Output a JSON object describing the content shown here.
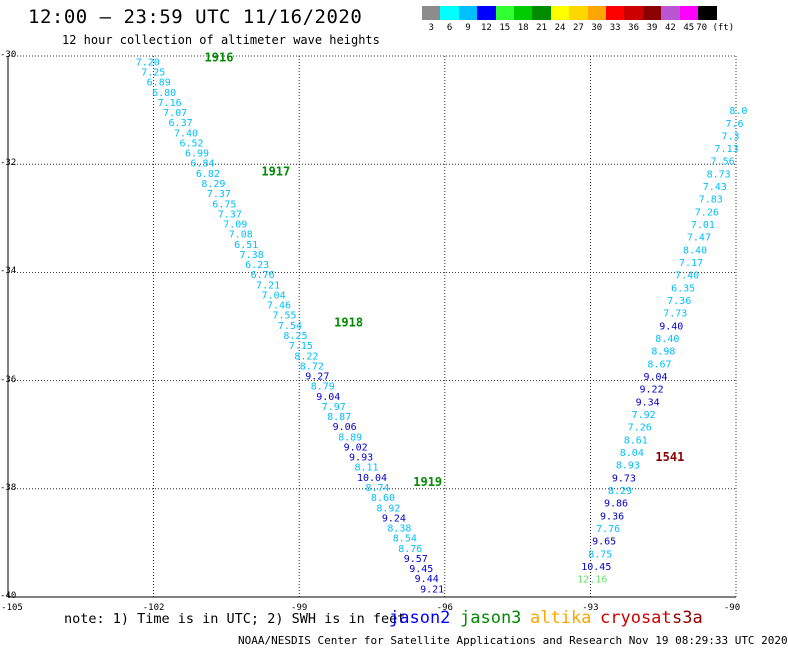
{
  "header": {
    "title": "12:00 – 23:59 UTC 11/16/2020",
    "subtitle": "12 hour collection of altimeter wave heights"
  },
  "colorbar": {
    "ticks": [
      "3",
      "6",
      "9",
      "12",
      "15",
      "18",
      "21",
      "24",
      "27",
      "30",
      "33",
      "36",
      "39",
      "42",
      "45",
      "70 (ft)"
    ],
    "colors": [
      "#8c8c8c",
      "#00ffff",
      "#00bfff",
      "#0000ff",
      "#32ff32",
      "#00cd00",
      "#008b00",
      "#ffff00",
      "#ffd700",
      "#ffa500",
      "#ff0000",
      "#cd0000",
      "#8b0000",
      "#ba55d3",
      "#ff00ff",
      "#000000"
    ]
  },
  "axes": {
    "lat_labels": [
      "-30",
      "-32",
      "-34",
      "-36",
      "-38",
      "-40"
    ],
    "lat_values": [
      -30,
      -32,
      -34,
      -36,
      -38,
      -40
    ],
    "lon_labels": [
      "-105",
      "-102",
      "-99",
      "-96",
      "-93",
      "-90"
    ],
    "lon_values": [
      -105,
      -102,
      -99,
      -96,
      -93,
      -90
    ],
    "lon_range": [
      -105,
      -90
    ],
    "lat_range": [
      -40,
      -30
    ]
  },
  "footer": {
    "note": "note: 1) Time is in UTC; 2) SWH is in feet",
    "credit": "NOAA/NESDIS Center for Satellite Applications and Research   Nov 19 08:29:33 UTC 2020"
  },
  "legend": [
    {
      "name": "jason2",
      "color": "#0000ff"
    },
    {
      "name": "jason3",
      "color": "#008b00"
    },
    {
      "name": "altika",
      "color": "#ffa500"
    },
    {
      "name": "cryosat",
      "color": "#cd0000"
    },
    {
      "name": "s3a",
      "color": "#8b0000"
    }
  ],
  "tracks": [
    {
      "satellite": "jason3",
      "color_scale": "swh_ft",
      "time_labels": [
        {
          "text": "1916",
          "lon": -100.95,
          "lat": -30.01,
          "color": "#008b00"
        },
        {
          "text": "1917",
          "lon": -99.78,
          "lat": -32.12,
          "color": "#008b00"
        },
        {
          "text": "1918",
          "lon": -98.28,
          "lat": -34.91,
          "color": "#008b00"
        },
        {
          "text": "1919",
          "lon": -96.65,
          "lat": -37.86,
          "color": "#008b00"
        }
      ],
      "lon_start": -102.12,
      "lat_start": -30.1,
      "lon_end": -96.26,
      "lat_end": -39.84,
      "values": [
        "7.20",
        "7.25",
        "6.89",
        "6.80",
        "7.16",
        "7.07",
        "6.37",
        "7.40",
        "6.52",
        "6.99",
        "6.84",
        "6.82",
        "8.29",
        "7.37",
        "6.75",
        "7.37",
        "7.09",
        "7.08",
        "6.51",
        "7.38",
        "6.23",
        "6.76",
        "7.21",
        "7.04",
        "7.46",
        "7.55",
        "7.54",
        "8.25",
        "7.15",
        "8.22",
        "8.72",
        "9.27",
        "8.79",
        "9.04",
        "7.97",
        "8.87",
        "9.06",
        "8.89",
        "9.02",
        "9.93",
        "8.11",
        "10.04",
        "8.74",
        "8.60",
        "8.92",
        "9.24",
        "8.38",
        "8.54",
        "8.76",
        "9.57",
        "9.45",
        "9.44",
        "9.21"
      ]
    },
    {
      "satellite": "s3a",
      "color_scale": "swh_ft",
      "time_labels": [
        {
          "text": "1541",
          "lon": -91.66,
          "lat": -37.39,
          "color": "#8b0000"
        }
      ],
      "lon_start": -92.96,
      "lat_start": -39.66,
      "lon_end": -89.95,
      "lat_end": -31.0,
      "values": [
        "12.16",
        "10.45",
        "8.75",
        "9.65",
        "7.76",
        "9.36",
        "9.86",
        "8.29",
        "9.73",
        "8.93",
        "8.04",
        "8.61",
        "7.26",
        "7.92",
        "9.34",
        "9.22",
        "9.04",
        "8.67",
        "8.98",
        "8.40",
        "9.40",
        "7.73",
        "7.36",
        "6.35",
        "7.40",
        "7.17",
        "8.40",
        "7.47",
        "7.01",
        "7.26",
        "7.83",
        "7.43",
        "8.73",
        "7.56",
        "7.13",
        "7.3",
        "7.6",
        "8.0"
      ]
    }
  ]
}
